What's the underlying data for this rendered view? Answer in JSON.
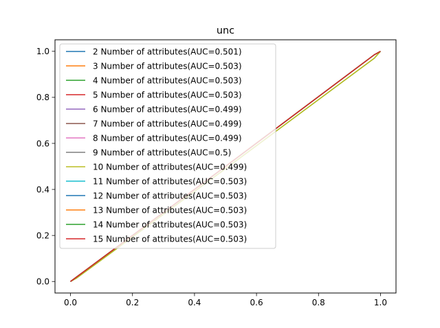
{
  "chart_data": {
    "type": "line",
    "title": "unc",
    "xlabel": "",
    "ylabel": "",
    "xlim": [
      -0.05,
      1.05
    ],
    "ylim": [
      -0.05,
      1.05
    ],
    "xticks": [
      "0.0",
      "0.2",
      "0.4",
      "0.6",
      "0.8",
      "1.0"
    ],
    "yticks": [
      "0.0",
      "0.2",
      "0.4",
      "0.6",
      "0.8",
      "1.0"
    ],
    "grid": false,
    "legend_position": "top-left",
    "series": [
      {
        "name": "2 Number of attributes(AUC=0.501)",
        "color": "#1f77b4",
        "x": [
          0,
          0.02,
          0.5,
          0.98,
          1
        ],
        "y": [
          0,
          0.02,
          0.5,
          0.985,
          1
        ]
      },
      {
        "name": "3 Number of attributes(AUC=0.503)",
        "color": "#ff7f0e",
        "x": [
          0,
          0.02,
          0.5,
          0.98,
          1
        ],
        "y": [
          0,
          0.02,
          0.5,
          0.985,
          1
        ]
      },
      {
        "name": "4 Number of attributes(AUC=0.503)",
        "color": "#2ca02c",
        "x": [
          0,
          0.02,
          0.5,
          0.98,
          1
        ],
        "y": [
          0,
          0.015,
          0.49,
          0.97,
          1
        ]
      },
      {
        "name": "5 Number of attributes(AUC=0.503)",
        "color": "#d62728",
        "x": [
          0,
          0.02,
          0.5,
          0.98,
          1
        ],
        "y": [
          0,
          0.02,
          0.5,
          0.985,
          1
        ]
      },
      {
        "name": "6 Number of attributes(AUC=0.499)",
        "color": "#9467bd",
        "x": [
          0,
          0.02,
          0.5,
          0.98,
          1
        ],
        "y": [
          0,
          0.02,
          0.5,
          0.985,
          1
        ]
      },
      {
        "name": "7 Number of attributes(AUC=0.499)",
        "color": "#8c564b",
        "x": [
          0,
          0.02,
          0.5,
          0.98,
          1
        ],
        "y": [
          0,
          0.02,
          0.5,
          0.985,
          1
        ]
      },
      {
        "name": "8 Number of attributes(AUC=0.499)",
        "color": "#e377c2",
        "x": [
          0,
          0.02,
          0.5,
          0.98,
          1
        ],
        "y": [
          0,
          0.02,
          0.5,
          0.985,
          1
        ]
      },
      {
        "name": "9 Number of attributes(AUC=0.5)",
        "color": "#7f7f7f",
        "x": [
          0,
          0.02,
          0.5,
          0.98,
          1
        ],
        "y": [
          0,
          0.02,
          0.5,
          0.985,
          1
        ]
      },
      {
        "name": "10 Number of attributes(AUC=0.499)",
        "color": "#bcbd22",
        "x": [
          0,
          0.02,
          0.5,
          0.98,
          1
        ],
        "y": [
          0,
          0.015,
          0.49,
          0.97,
          1
        ]
      },
      {
        "name": "11 Number of attributes(AUC=0.503)",
        "color": "#17becf",
        "x": [
          0,
          0.02,
          0.5,
          0.98,
          1
        ],
        "y": [
          0,
          0.02,
          0.5,
          0.985,
          1
        ]
      },
      {
        "name": "12 Number of attributes(AUC=0.503)",
        "color": "#1f77b4",
        "x": [
          0,
          0.02,
          0.5,
          0.98,
          1
        ],
        "y": [
          0,
          0.02,
          0.5,
          0.985,
          1
        ]
      },
      {
        "name": "13 Number of attributes(AUC=0.503)",
        "color": "#ff7f0e",
        "x": [
          0,
          0.02,
          0.5,
          0.98,
          1
        ],
        "y": [
          0,
          0.02,
          0.5,
          0.985,
          1
        ]
      },
      {
        "name": "14 Number of attributes(AUC=0.503)",
        "color": "#2ca02c",
        "x": [
          0,
          0.02,
          0.5,
          0.98,
          1
        ],
        "y": [
          0,
          0.02,
          0.5,
          0.985,
          1
        ]
      },
      {
        "name": "15 Number of attributes(AUC=0.503)",
        "color": "#d62728",
        "x": [
          0,
          0.02,
          0.5,
          0.98,
          1
        ],
        "y": [
          0,
          0.02,
          0.5,
          0.985,
          1
        ]
      }
    ]
  }
}
